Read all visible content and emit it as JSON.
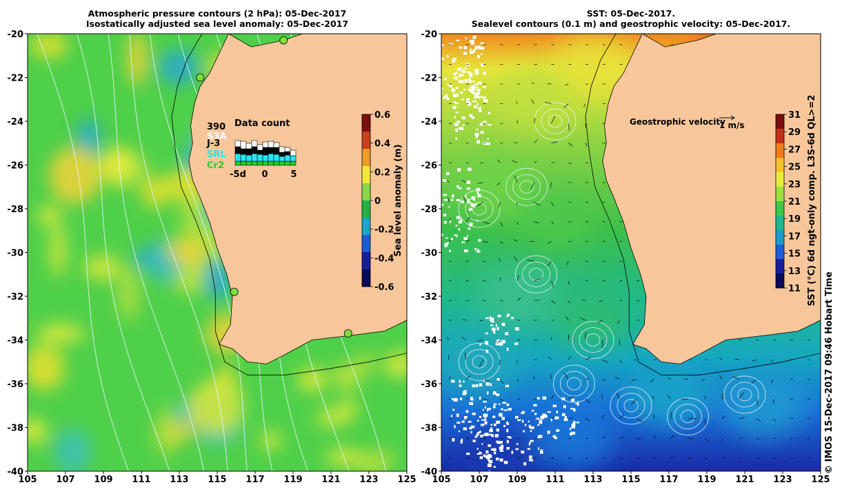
{
  "left_panel": {
    "title_line1": "Atmospheric pressure contours (2 hPa): 05-Dec-2017",
    "title_line2": "Isostatically adjusted sea level anomaly: 05-Dec-2017",
    "colorbar": {
      "label": "Sea level anomaly (m)",
      "ticks": [
        "0.6",
        "0.4",
        "0.2",
        "0",
        "-0.2",
        "-0.4",
        "-0.6"
      ],
      "colors": [
        "#7a0f12",
        "#c8401d",
        "#ee9b2a",
        "#f2e93c",
        "#88d84a",
        "#21b24a",
        "#1aa8c8",
        "#1e5bd8",
        "#1a1c9a",
        "#0a0a5a"
      ]
    },
    "legend": {
      "title": "Data count",
      "count": "390",
      "sat1": "S3A",
      "sat2": "J-3",
      "sat3": "SRL",
      "sat4": "Cr2",
      "x_tick_labels": [
        "-5d",
        "0",
        "5"
      ],
      "colors": {
        "sat1": "#ffffff",
        "sat2": "#000000",
        "sat3": "#27e4f2",
        "sat4": "#29cc29"
      }
    }
  },
  "right_panel": {
    "title_line1": "SST: 05-Dec-2017.",
    "title_line2": "Sealevel contours (0.1 m) and geostrophic velocity: 05-Dec-2017.",
    "velocity_label": "Geostrophic velocity",
    "velocity_scale": "1 m/s",
    "colorbar": {
      "label": "SST (°C) 6d ngt-only comp. L3S-6d QL>=2",
      "ticks": [
        "31",
        "29",
        "27",
        "25",
        "23",
        "21",
        "19",
        "17",
        "15",
        "13",
        "11"
      ],
      "colors": [
        "#7a0c0c",
        "#c33018",
        "#f07a1c",
        "#f6c02a",
        "#e7ec38",
        "#9ee044",
        "#3fc84a",
        "#1bb88c",
        "#1a9ccc",
        "#1c5fd8",
        "#161e9c",
        "#0b0b5a"
      ]
    }
  },
  "axes": {
    "x_ticks": [
      "105",
      "107",
      "109",
      "111",
      "113",
      "115",
      "117",
      "119",
      "121",
      "123",
      "125"
    ],
    "y_ticks": [
      "-20",
      "-22",
      "-24",
      "-26",
      "-28",
      "-30",
      "-32",
      "-34",
      "-36",
      "-38",
      "-40"
    ]
  },
  "tide_gauges": [
    {
      "lon": 118.5,
      "lat": -20.3
    },
    {
      "lon": 114.1,
      "lat": -22.0
    },
    {
      "lon": 115.9,
      "lat": -31.8
    },
    {
      "lon": 121.9,
      "lat": -33.7
    }
  ],
  "credit": "© IMOS 15-Dec-2017 09:46 Hobart Time",
  "colors": {
    "land": "#f7c79b",
    "coast": "#000000",
    "bathymetry": "#000000"
  }
}
